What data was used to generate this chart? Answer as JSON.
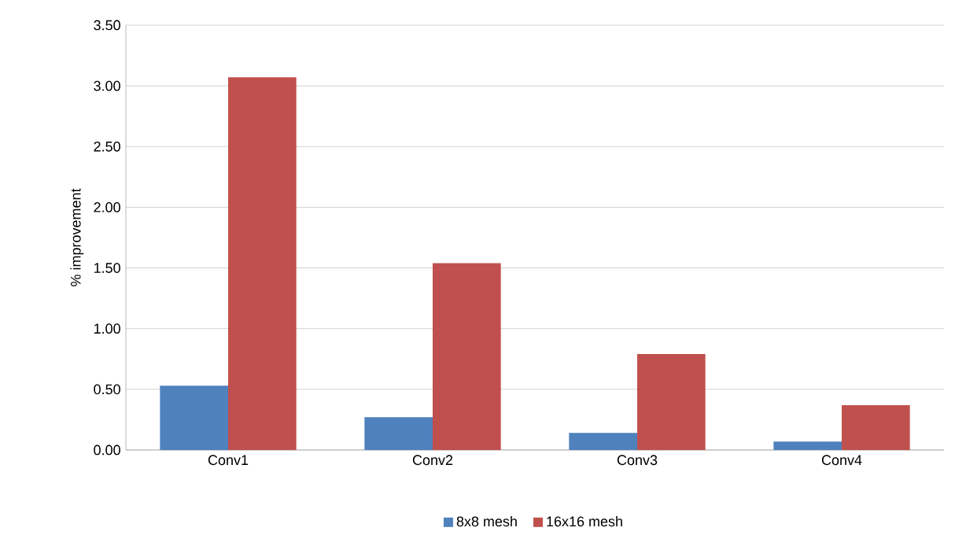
{
  "chart_data": {
    "type": "bar",
    "ylabel": "% improvement",
    "categories": [
      "Conv1",
      "Conv2",
      "Conv3",
      "Conv4"
    ],
    "series": [
      {
        "name": "8x8 mesh",
        "color": "#4f81bd",
        "values": [
          0.53,
          0.27,
          0.14,
          0.07
        ]
      },
      {
        "name": "16x16 mesh",
        "color": "#c0504d",
        "values": [
          3.07,
          1.54,
          0.79,
          0.37
        ]
      }
    ],
    "ylim": [
      0,
      3.5
    ],
    "yticks": [
      {
        "value": 0,
        "label": "0.00"
      },
      {
        "value": 0.5,
        "label": "0.50"
      },
      {
        "value": 1,
        "label": "1.00"
      },
      {
        "value": 1.5,
        "label": "1.50"
      },
      {
        "value": 2,
        "label": "2.00"
      },
      {
        "value": 2.5,
        "label": "2.50"
      },
      {
        "value": 3,
        "label": "3.00"
      },
      {
        "value": 3.5,
        "label": "3.50"
      }
    ],
    "grid": "y",
    "legend": "bottom"
  }
}
